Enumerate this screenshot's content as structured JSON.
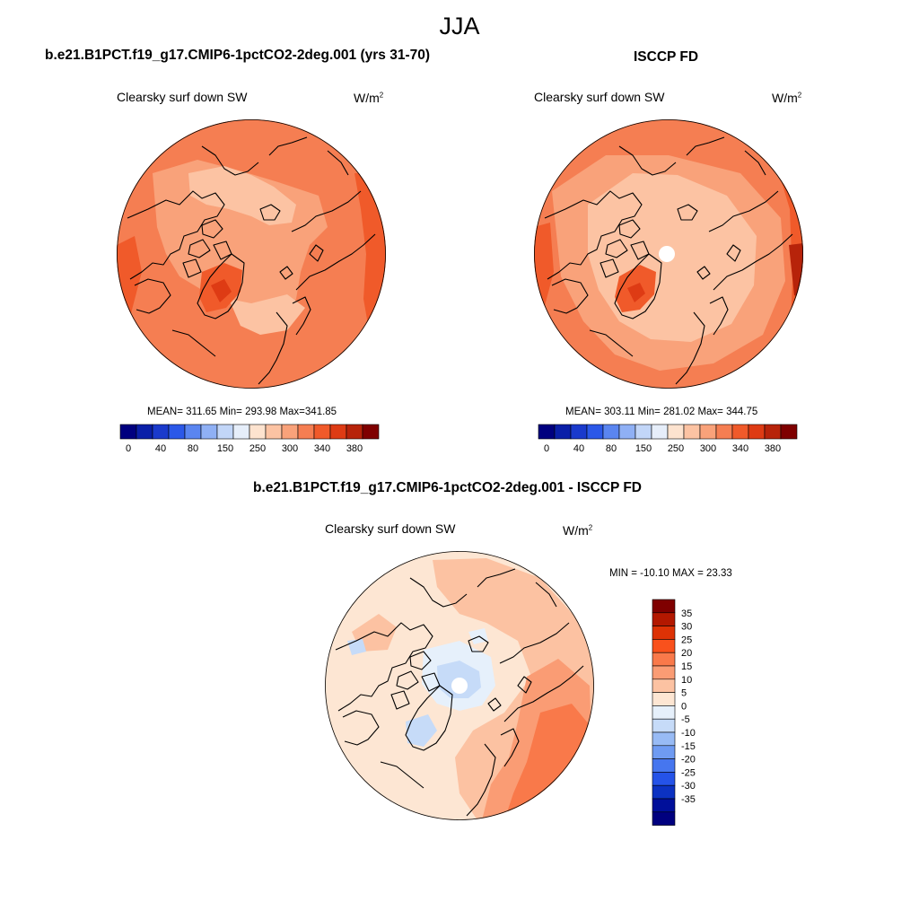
{
  "figure": {
    "title": "JJA"
  },
  "panel_left": {
    "title": "b.e21.B1PCT.f19_g17.CMIP6-1pctCO2-2deg.001 (yrs 31-70)",
    "variable": "Clearsky surf down SW",
    "units_base": "W/m",
    "units_exp": "2",
    "stats": "MEAN= 311.65  Min= 293.98  Max=341.85"
  },
  "panel_right": {
    "title": "ISCCP FD",
    "variable": "Clearsky surf down SW",
    "units_base": "W/m",
    "units_exp": "2",
    "stats": "MEAN= 303.11  Min= 281.02  Max= 344.75"
  },
  "panel_diff": {
    "title": "b.e21.B1PCT.f19_g17.CMIP6-1pctCO2-2deg.001 - ISCCP FD",
    "variable": "Clearsky surf down SW",
    "units_base": "W/m",
    "units_exp": "2",
    "stats": "MIN = -10.10 MAX =  23.33"
  },
  "colorbar_abs": {
    "colors": [
      "#00007f",
      "#0a1fa8",
      "#1a3acc",
      "#2b58e8",
      "#5a85f0",
      "#8fb0f5",
      "#c2d6f8",
      "#e6eefa",
      "#fde3cf",
      "#fcc3a3",
      "#f9a27a",
      "#f57e52",
      "#f05a2a",
      "#de3b14",
      "#b7230a",
      "#7f0000"
    ],
    "tick_labels": [
      "0",
      "40",
      "80",
      "150",
      "250",
      "300",
      "340",
      "380"
    ]
  },
  "colorbar_diff": {
    "colors": [
      "#7f0000",
      "#b31800",
      "#dd3205",
      "#f9511c",
      "#f9794a",
      "#fa9c74",
      "#fcc2a2",
      "#fde6d3",
      "#e6f0fb",
      "#c6dbf8",
      "#98bbf5",
      "#6f9bf2",
      "#4676ef",
      "#2553e8",
      "#0c32c2",
      "#000f9a",
      "#00007f"
    ],
    "tick_labels": [
      "35",
      "30",
      "25",
      "20",
      "15",
      "10",
      "5",
      "0",
      "-5",
      "-10",
      "-15",
      "-20",
      "-25",
      "-30",
      "-35"
    ]
  },
  "map_colors": {
    "abs_low": "#fcc3a3",
    "abs_mid": "#f9a27a",
    "abs_base": "#f57e52",
    "abs_high": "#f05a2a",
    "abs_max": "#de3b14",
    "abs_peak": "#b7230a",
    "diff_base": "#fde6d3",
    "diff_mid": "#fcc2a2",
    "diff_high": "#fa9c74",
    "diff_max": "#f9794a",
    "diff_neg1": "#e6f0fb",
    "diff_neg2": "#c6dbf8",
    "coast": "#000000"
  }
}
